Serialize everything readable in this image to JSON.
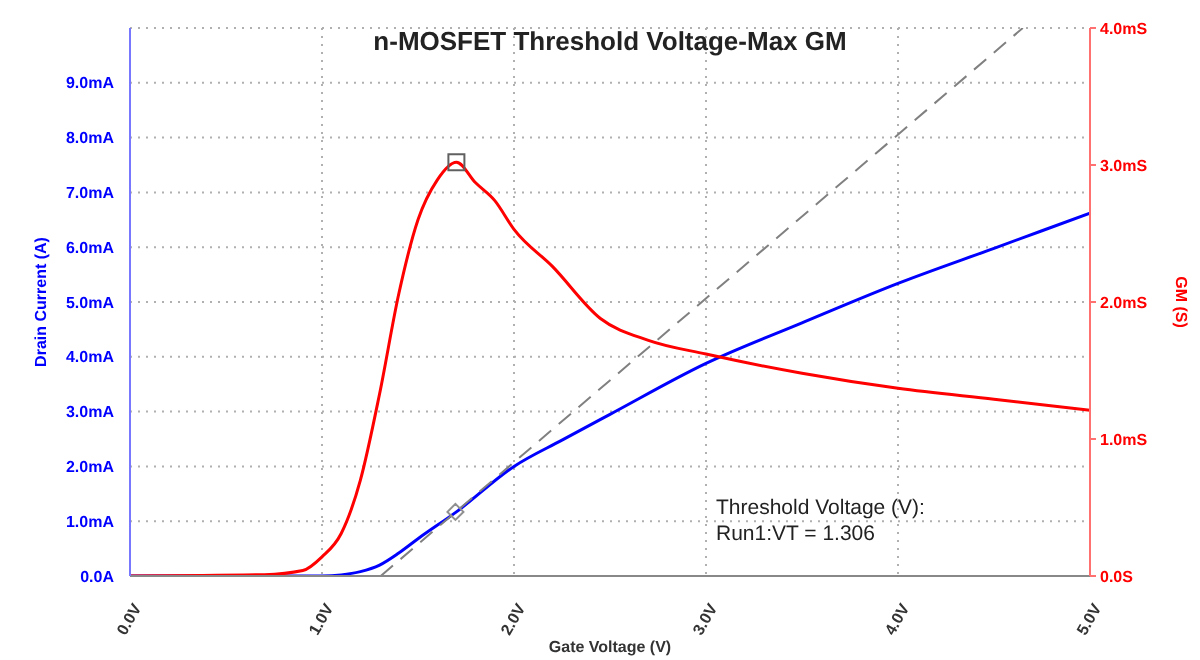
{
  "chart_data": {
    "type": "line",
    "title": "n-MOSFET Threshold Voltage-Max GM",
    "xlabel": "Gate Voltage (V)",
    "ylabel": "Drain Current (A)",
    "y2label": "GM (S)",
    "xlim": [
      0,
      5
    ],
    "xticks": [
      {
        "value": 0,
        "label": "0.0V"
      },
      {
        "value": 1,
        "label": "1.0V"
      },
      {
        "value": 2,
        "label": "2.0V"
      },
      {
        "value": 3,
        "label": "3.0V"
      },
      {
        "value": 4,
        "label": "4.0V"
      },
      {
        "value": 5,
        "label": "5.0V"
      }
    ],
    "ylim": [
      0,
      10
    ],
    "yticks": [
      {
        "value": 0,
        "label": "0.0A"
      },
      {
        "value": 1,
        "label": "1.0mA"
      },
      {
        "value": 2,
        "label": "2.0mA"
      },
      {
        "value": 3,
        "label": "3.0mA"
      },
      {
        "value": 4,
        "label": "4.0mA"
      },
      {
        "value": 5,
        "label": "5.0mA"
      },
      {
        "value": 6,
        "label": "6.0mA"
      },
      {
        "value": 7,
        "label": "7.0mA"
      },
      {
        "value": 8,
        "label": "8.0mA"
      },
      {
        "value": 9,
        "label": "9.0mA"
      }
    ],
    "y2lim": [
      0,
      4
    ],
    "y2ticks": [
      {
        "value": 0,
        "label": "0.0S"
      },
      {
        "value": 1,
        "label": "1.0mS"
      },
      {
        "value": 2,
        "label": "2.0mS"
      },
      {
        "value": 3,
        "label": "3.0mS"
      },
      {
        "value": 4,
        "label": "4.0mS"
      }
    ],
    "grid": true,
    "marker": "none",
    "annotations": [
      "Threshold Voltage (V):",
      "Run1:VT = 1.306"
    ],
    "series": [
      {
        "color": "#0000ff",
        "x": [
          0,
          0.5,
          1.0,
          1.1,
          1.2,
          1.3,
          1.4,
          1.5,
          1.7,
          2.0,
          2.25,
          2.5,
          3.0,
          3.5,
          4.0,
          4.5,
          5.0
        ],
        "values": [
          0,
          0,
          0,
          0.02,
          0.08,
          0.2,
          0.42,
          0.68,
          1.17,
          2.0,
          2.48,
          2.95,
          3.88,
          4.62,
          5.34,
          5.98,
          6.62
        ]
      },
      {
        "color": "#ff0000",
        "axis": "y2",
        "x": [
          0,
          0.7,
          0.9,
          1.0,
          1.1,
          1.2,
          1.3,
          1.4,
          1.5,
          1.6,
          1.7,
          1.8,
          1.9,
          2.0,
          2.2,
          2.45,
          2.7,
          3.0,
          3.5,
          4.0,
          4.5,
          5.0
        ],
        "values": [
          0,
          0.01,
          0.04,
          0.14,
          0.31,
          0.7,
          1.33,
          2.06,
          2.6,
          2.89,
          3.02,
          2.87,
          2.74,
          2.53,
          2.26,
          1.88,
          1.72,
          1.62,
          1.48,
          1.37,
          1.29,
          1.21
        ]
      },
      {
        "type": "line",
        "color": "#808080",
        "line_style": "dashed",
        "x": [
          1.306,
          4.65
        ],
        "values": [
          0,
          10
        ]
      },
      {
        "type": "scatter",
        "marker": "square",
        "color": "#606060",
        "axis": "y2",
        "x": [
          1.7
        ],
        "values": [
          3.02
        ]
      },
      {
        "type": "scatter",
        "marker": "diamond",
        "color": "#909090",
        "x": [
          1.695
        ],
        "values": [
          1.17
        ]
      }
    ]
  }
}
